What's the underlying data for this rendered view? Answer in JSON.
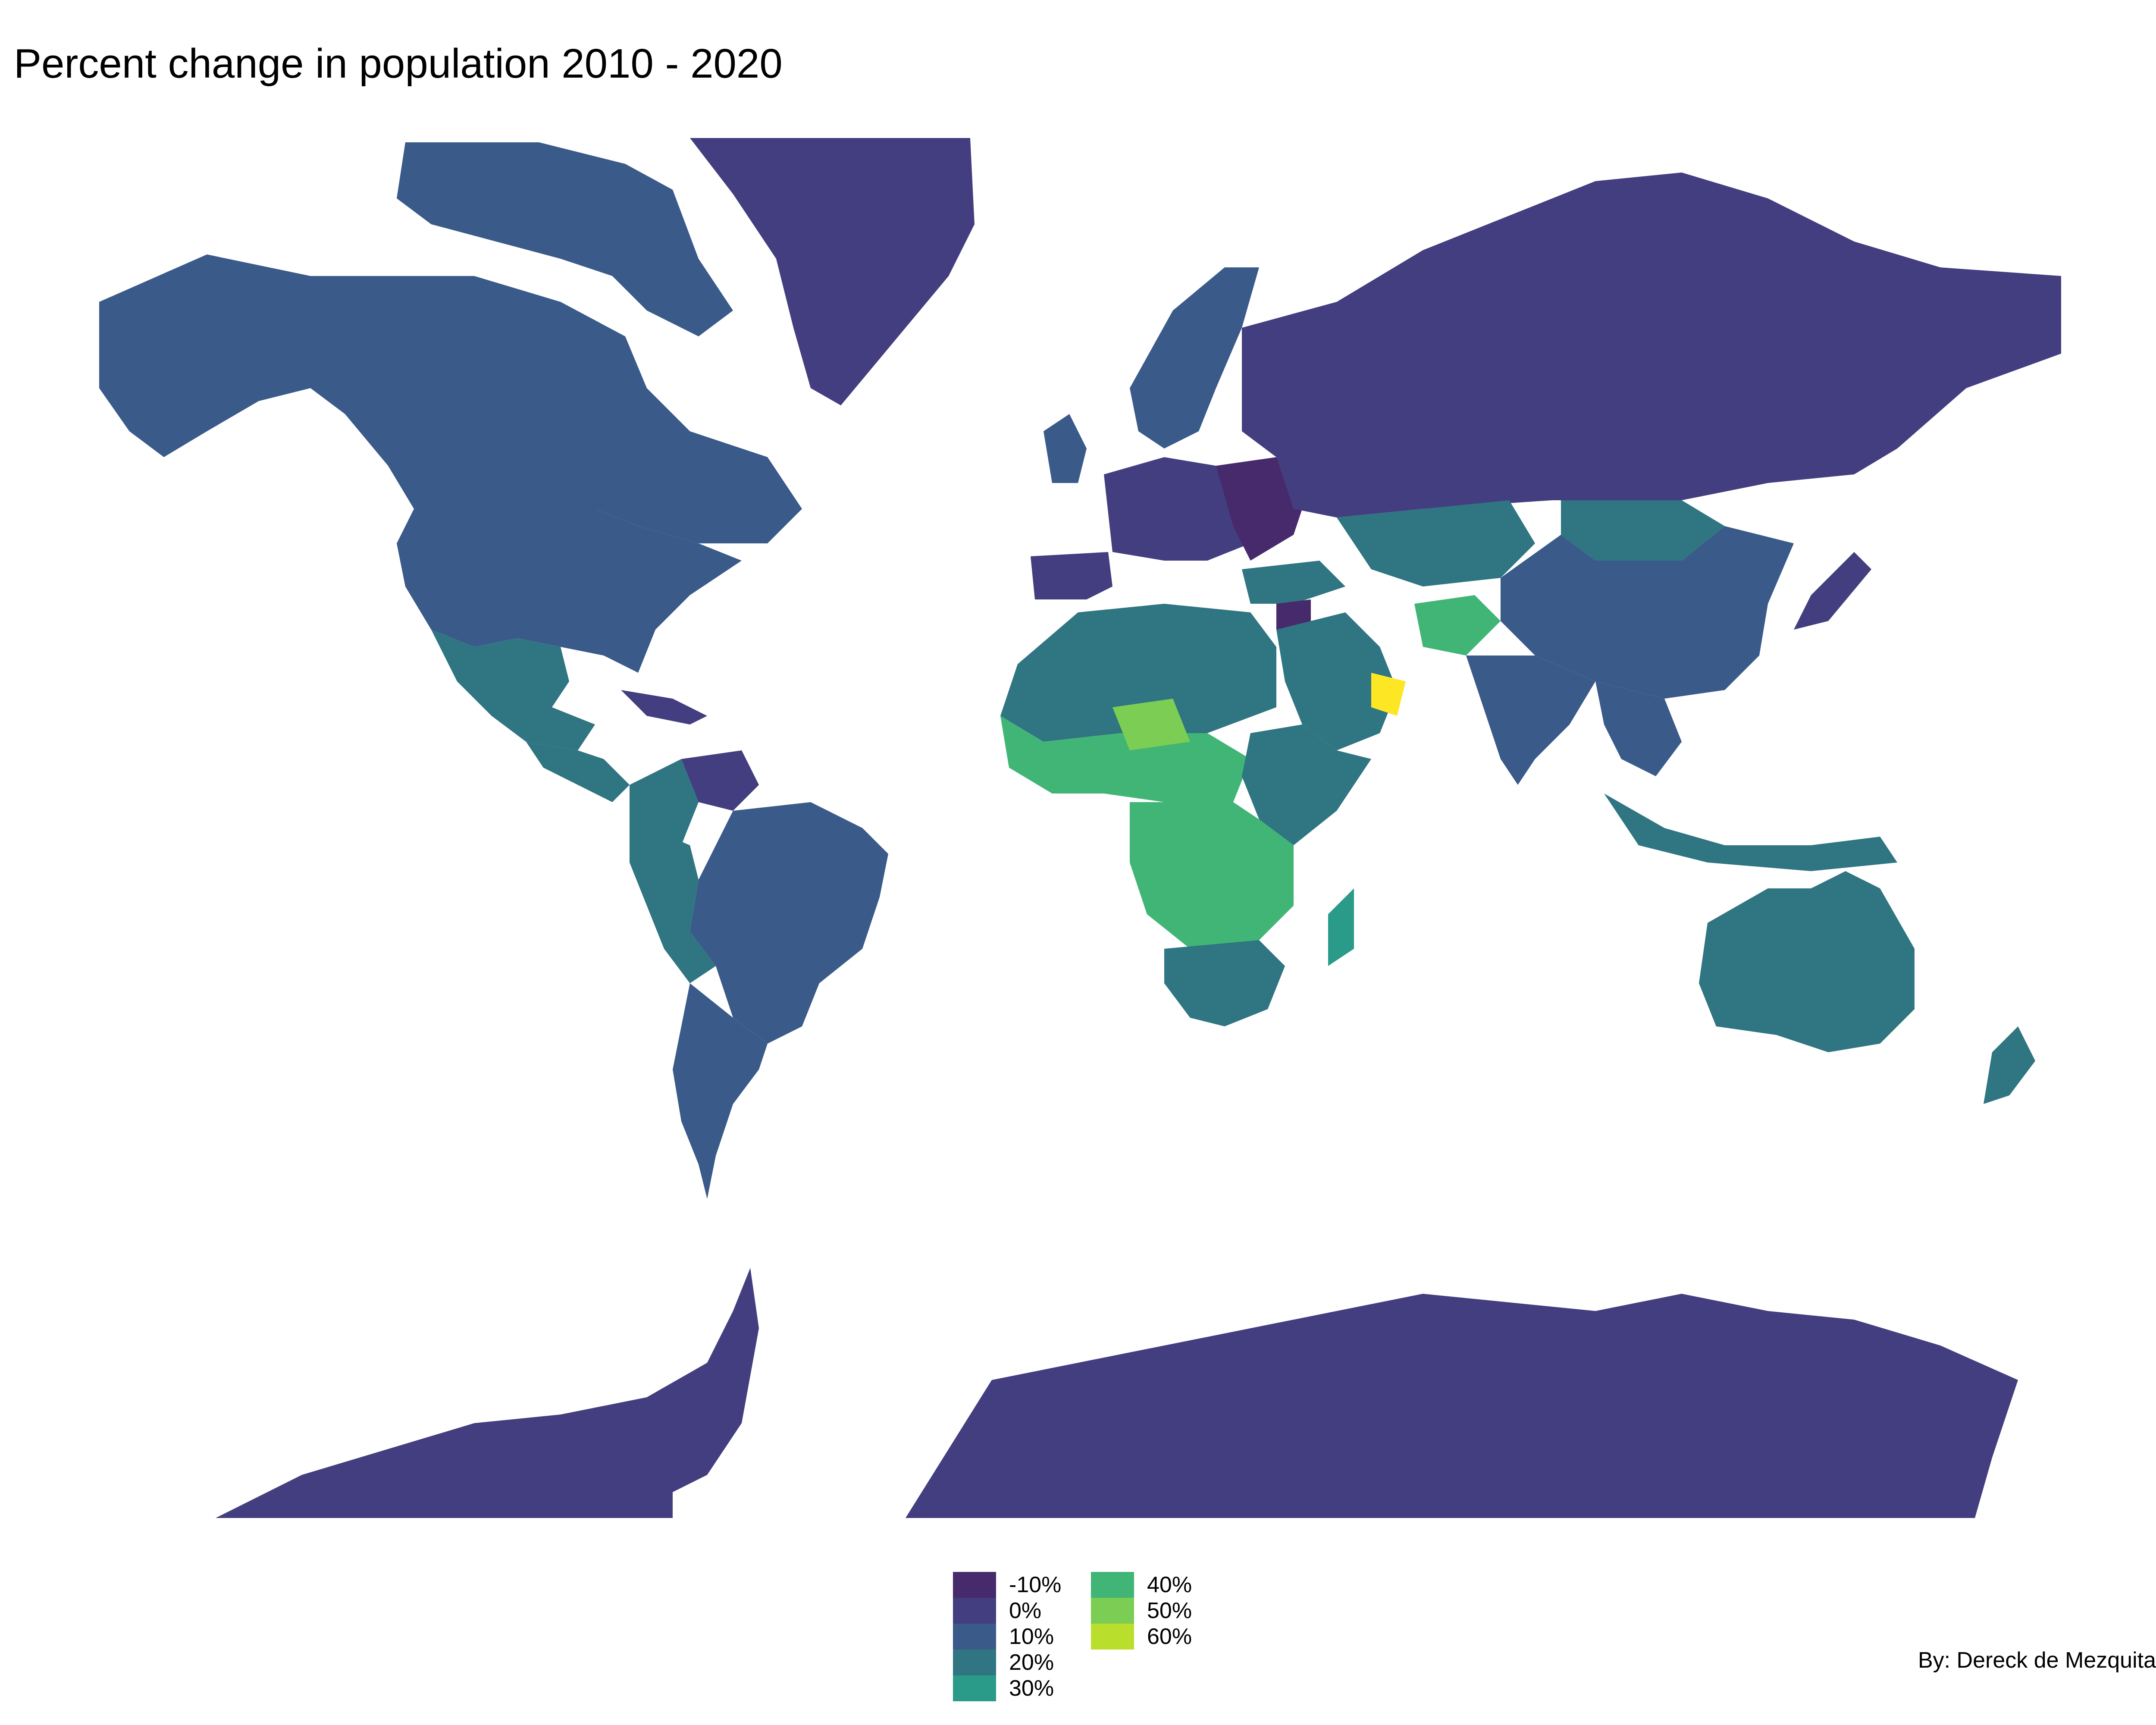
{
  "title": "Percent change in population 2010 - 2020",
  "credit": "By: Dereck de Mezquita",
  "colors": {
    "neg10": "#472a6b",
    "zero": "#433e7f",
    "ten": "#3a5a8a",
    "twenty": "#2f7582",
    "thirty": "#2a9b88",
    "forty": "#41b576",
    "fifty": "#7ccd53",
    "sixty": "#b9df2c",
    "max": "#fde725"
  },
  "legend": {
    "items": [
      {
        "label": "-10%",
        "color": "#472a6b"
      },
      {
        "label": "0%",
        "color": "#433e7f"
      },
      {
        "label": "10%",
        "color": "#3a5a8a"
      },
      {
        "label": "20%",
        "color": "#2f7582"
      },
      {
        "label": "30%",
        "color": "#2a9b88"
      },
      {
        "label": "40%",
        "color": "#41b576"
      },
      {
        "label": "50%",
        "color": "#7ccd53"
      },
      {
        "label": "60%",
        "color": "#b9df2c"
      }
    ]
  }
}
